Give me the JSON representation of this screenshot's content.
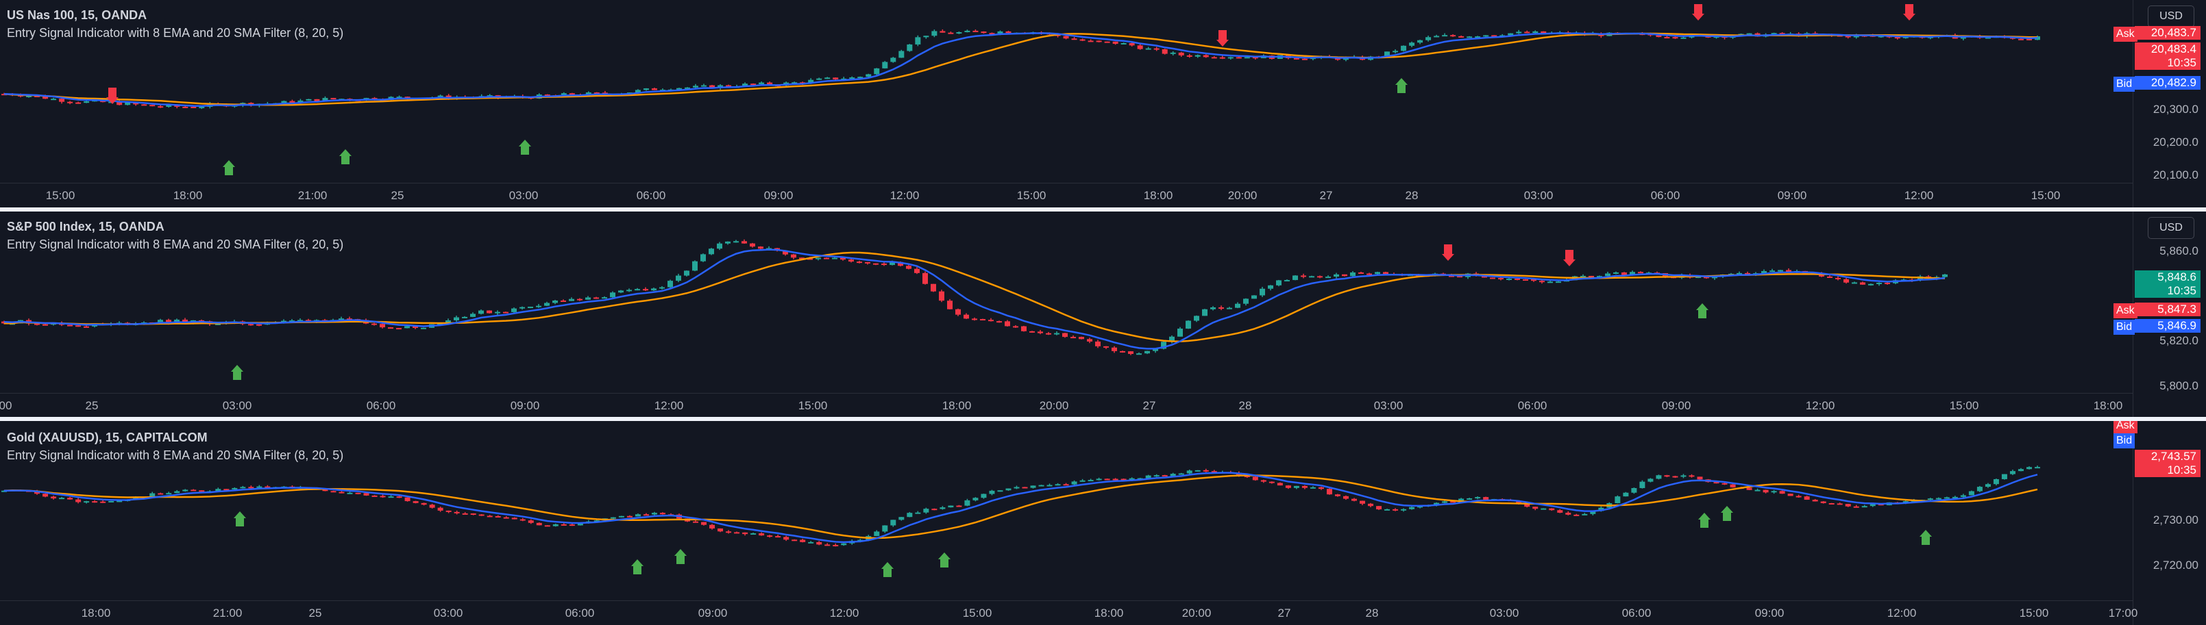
{
  "currency_button": "USD",
  "colors": {
    "up": "#26a69a",
    "down": "#f23645",
    "ema": "#2962ff",
    "sma": "#ff9800",
    "buy": "#4caf50",
    "sell": "#f23645",
    "ask": "#f23645",
    "bid": "#2962ff"
  },
  "panes": [
    {
      "symbol": "US Nas 100, 15, OANDA",
      "indicator": "Entry Signal Indicator with 8 EMA and 20 SMA Filter (8, 20, 5)",
      "price_ticks": [
        "20,300.0",
        "20,200.0",
        "20,100.0"
      ],
      "time_ticks": [
        "15:00",
        "18:00",
        "21:00",
        "25",
        "03:00",
        "06:00",
        "09:00",
        "12:00",
        "15:00",
        "18:00",
        "20:00",
        "27",
        "28",
        "03:00",
        "06:00",
        "09:00",
        "12:00",
        "15:00"
      ],
      "ask_label": "Ask",
      "ask_price": "20,483.7",
      "current_price": "20,483.4",
      "countdown": "10:35",
      "bid_label": "Bid",
      "bid_price": "20,482.9"
    },
    {
      "symbol": "S&P 500 Index, 15, OANDA",
      "indicator": "Entry Signal Indicator with 8 EMA and 20 SMA Filter (8, 20, 5)",
      "price_ticks": [
        "5,860.0",
        "5,820.0",
        "5,800.0"
      ],
      "time_ticks": [
        "00",
        "25",
        "03:00",
        "06:00",
        "09:00",
        "12:00",
        "15:00",
        "18:00",
        "20:00",
        "27",
        "28",
        "03:00",
        "06:00",
        "09:00",
        "12:00",
        "15:00",
        "18:00"
      ],
      "ask_label": "Ask",
      "ask_price": "5,847.3",
      "current_price": "5,848.6",
      "countdown": "10:35",
      "bid_label": "Bid",
      "bid_price": "5,846.9"
    },
    {
      "symbol": "Gold (XAUUSD), 15, CAPITALCOM",
      "indicator": "Entry Signal Indicator with 8 EMA and 20 SMA Filter (8, 20, 5)",
      "price_ticks": [
        "2,730.00",
        "2,720.00"
      ],
      "time_ticks": [
        "18:00",
        "21:00",
        "25",
        "03:00",
        "06:00",
        "09:00",
        "12:00",
        "15:00",
        "18:00",
        "20:00",
        "27",
        "28",
        "03:00",
        "06:00",
        "09:00",
        "12:00",
        "15:00",
        "17:00"
      ],
      "ask_label": "Ask",
      "ask_price": "",
      "current_price": "2,743.57",
      "countdown": "10:35",
      "bid_label": "Bid",
      "bid_price": ""
    }
  ],
  "chart_data": [
    {
      "type": "candlestick",
      "title": "US Nas 100, 15, OANDA",
      "ylim": [
        20080,
        20560
      ],
      "x": [
        "15:00",
        "18:00",
        "21:00",
        "25",
        "03:00",
        "06:00",
        "09:00",
        "12:00",
        "15:00",
        "18:00",
        "20:00",
        "27",
        "28",
        "03:00",
        "06:00",
        "09:00",
        "12:00",
        "15:00"
      ],
      "close_trend": [
        20310,
        20285,
        20270,
        20280,
        20295,
        20300,
        20300,
        20310,
        20330,
        20340,
        20360,
        20500,
        20505,
        20470,
        20430,
        20425,
        20420,
        20490,
        20500,
        20495,
        20490,
        20495,
        20490,
        20488,
        20484
      ],
      "series": [
        {
          "name": "8 EMA",
          "color": "#2962ff"
        },
        {
          "name": "20 SMA",
          "color": "#ff9800"
        }
      ]
    },
    {
      "type": "candlestick",
      "title": "S&P 500 Index, 15, OANDA",
      "ylim": [
        5795,
        5875
      ],
      "x": [
        "00",
        "25",
        "03:00",
        "06:00",
        "09:00",
        "12:00",
        "15:00",
        "18:00",
        "20:00",
        "27",
        "28",
        "03:00",
        "06:00",
        "09:00",
        "12:00",
        "15:00",
        "18:00"
      ],
      "close_trend": [
        5825,
        5823,
        5825,
        5824,
        5826,
        5822,
        5830,
        5836,
        5842,
        5866,
        5858,
        5855,
        5826,
        5818,
        5808,
        5832,
        5848,
        5850,
        5849,
        5846,
        5850,
        5848,
        5851,
        5845,
        5848.6
      ],
      "series": [
        {
          "name": "8 EMA",
          "color": "#2962ff"
        },
        {
          "name": "20 SMA",
          "color": "#ff9800"
        }
      ]
    },
    {
      "type": "candlestick",
      "title": "Gold (XAUUSD), 15, CAPITALCOM",
      "ylim": [
        2716,
        2748
      ],
      "x": [
        "18:00",
        "21:00",
        "25",
        "03:00",
        "06:00",
        "09:00",
        "12:00",
        "15:00",
        "18:00",
        "20:00",
        "27",
        "28",
        "03:00",
        "06:00",
        "09:00",
        "12:00",
        "15:00",
        "17:00"
      ],
      "close_trend": [
        2737,
        2734,
        2737,
        2738,
        2736,
        2731,
        2728,
        2731,
        2726,
        2723,
        2732,
        2738,
        2740,
        2742,
        2738,
        2732,
        2735,
        2731,
        2741,
        2737,
        2733,
        2735,
        2743.57
      ],
      "series": [
        {
          "name": "8 EMA",
          "color": "#2962ff"
        },
        {
          "name": "20 SMA",
          "color": "#ff9800"
        }
      ]
    }
  ]
}
